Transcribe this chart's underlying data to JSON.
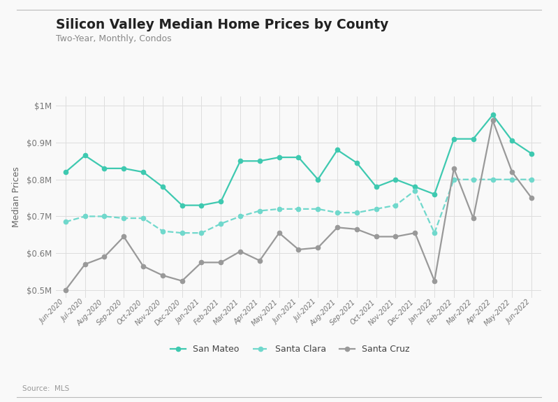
{
  "title": "Silicon Valley Median Home Prices by County",
  "subtitle": "Two-Year, Monthly, Condos",
  "source": "Source:  MLS",
  "ylabel": "Median Prices",
  "background_color": "#f9f9f9",
  "plot_background": "#f9f9f9",
  "grid_color": "#dddddd",
  "months": [
    "Jun-2020",
    "Jul-2020",
    "Aug-2020",
    "Sep-2020",
    "Oct-2020",
    "Nov-2020",
    "Dec-2020",
    "Jan-2021",
    "Feb-2021",
    "Mar-2021",
    "Apr-2021",
    "May-2021",
    "Jun-2021",
    "Jul-2021",
    "Aug-2021",
    "Sep-2021",
    "Oct-2021",
    "Nov-2021",
    "Dec-2021",
    "Jan-2022",
    "Feb-2022",
    "Mar-2022",
    "Apr-2022",
    "May-2022",
    "Jun-2022"
  ],
  "san_mateo": [
    820000,
    865000,
    830000,
    830000,
    820000,
    780000,
    730000,
    730000,
    740000,
    850000,
    850000,
    860000,
    860000,
    800000,
    880000,
    845000,
    780000,
    800000,
    780000,
    760000,
    910000,
    910000,
    975000,
    905000,
    870000
  ],
  "santa_clara": [
    685000,
    700000,
    700000,
    695000,
    695000,
    660000,
    655000,
    655000,
    680000,
    700000,
    715000,
    720000,
    720000,
    720000,
    710000,
    710000,
    720000,
    730000,
    770000,
    655000,
    800000,
    800000,
    800000,
    800000,
    800000
  ],
  "santa_cruz": [
    500000,
    570000,
    590000,
    645000,
    565000,
    540000,
    525000,
    575000,
    575000,
    605000,
    580000,
    655000,
    610000,
    615000,
    670000,
    665000,
    645000,
    645000,
    655000,
    525000,
    830000,
    695000,
    960000,
    820000,
    750000
  ],
  "san_mateo_color": "#3ec9b0",
  "santa_clara_color": "#70d8cc",
  "santa_cruz_color": "#999999",
  "ylim": [
    480000,
    1025000
  ],
  "yticks": [
    500000,
    600000,
    700000,
    800000,
    900000,
    1000000
  ]
}
